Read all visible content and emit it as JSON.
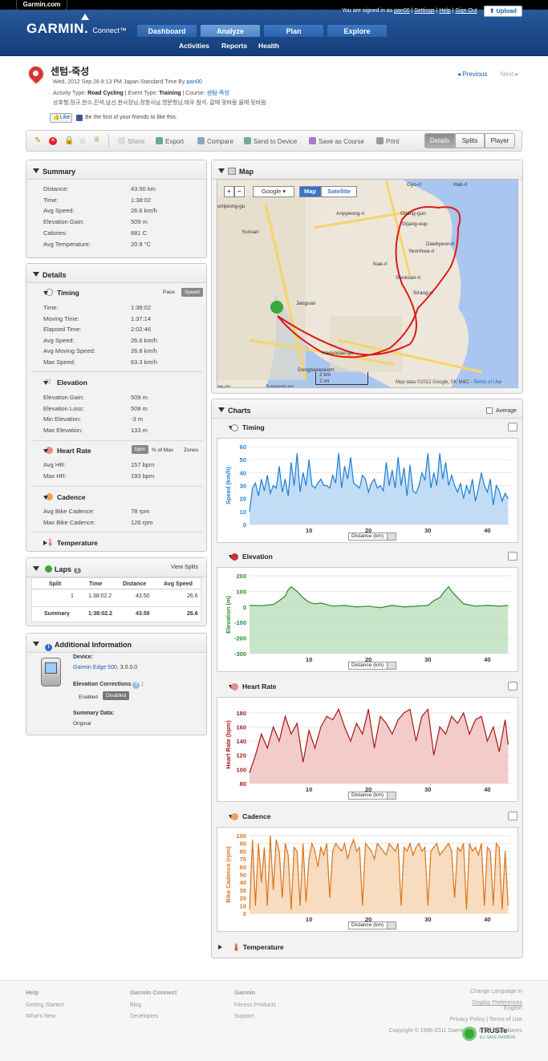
{
  "site_tab": "Garmin.com",
  "logo": {
    "main": "GARMIN.",
    "sub": "Connect™"
  },
  "userbar": {
    "signed": "You are signed in as",
    "user": "pan00",
    "settings": "Settings",
    "help": "Help",
    "signout": "Sign Out"
  },
  "upload_label": "Upload",
  "nav": {
    "tabs": [
      "Dashboard",
      "Analyze",
      "Plan",
      "Explore"
    ],
    "active": "Analyze",
    "sub": [
      "Activities",
      "Reports",
      "Health"
    ]
  },
  "activity": {
    "title": "센텀-죽성",
    "date_line": "Wed, 2012 Sep 26 8:13 PM Japan Standard Time By",
    "by_user": "pan00",
    "type_prefix": "Activity Type:",
    "type": "Road Cycling",
    "event_prefix": "| Event Type:",
    "event": "Training",
    "course_prefix": "| Course:",
    "course": "센텀-죽성",
    "participants": "상호형,정규,판수,진석,남선,판사장님,정항사님,영문형님,태우 참석. 갈때 맞바람 올때 뒷바람.",
    "like": "Like",
    "like_text": "Be the first of your friends to like this.",
    "previous": "Previous",
    "next": "Next"
  },
  "toolbar": {
    "share": "Share",
    "export": "Export",
    "compare": "Compare",
    "send": "Send to Device",
    "save_course": "Save as Course",
    "print": "Print",
    "views": [
      "Details",
      "Splits",
      "Player"
    ],
    "active_view": "Details"
  },
  "summary": {
    "title": "Summary",
    "rows": [
      {
        "label": "Distance:",
        "value": "43.50 km"
      },
      {
        "label": "Time:",
        "value": "1:38:02"
      },
      {
        "label": "Avg Speed:",
        "value": "26.6 km/h"
      },
      {
        "label": "Elevation Gain:",
        "value": "509 m"
      },
      {
        "label": "Calories:",
        "value": "881 C"
      },
      {
        "label": "Avg Temperature:",
        "value": "20.9 °C"
      }
    ]
  },
  "details": {
    "title": "Details",
    "timing": {
      "title": "Timing",
      "toggle": [
        "Pace",
        "Speed"
      ],
      "rows": [
        {
          "label": "Time:",
          "value": "1:38:02"
        },
        {
          "label": "Moving Time:",
          "value": "1:37:14"
        },
        {
          "label": "Elapsed Time:",
          "value": "2:02:46"
        },
        {
          "label": "Avg Speed:",
          "value": "26.6 km/h"
        },
        {
          "label": "Avg Moving Speed:",
          "value": "26.8 km/h"
        },
        {
          "label": "Max Speed:",
          "value": "63.3 km/h"
        }
      ]
    },
    "elevation": {
      "title": "Elevation",
      "rows": [
        {
          "label": "Elevation Gain:",
          "value": "509 m"
        },
        {
          "label": "Elevation Loss:",
          "value": "508 m"
        },
        {
          "label": "Min Elevation:",
          "value": "-3 m"
        },
        {
          "label": "Max Elevation:",
          "value": "133 m"
        }
      ]
    },
    "heart": {
      "title": "Heart Rate",
      "toggle": [
        "bpm",
        "% of Max",
        "Zones"
      ],
      "rows": [
        {
          "label": "Avg HR:",
          "value": "157 bpm"
        },
        {
          "label": "Max HR:",
          "value": "193 bpm"
        }
      ]
    },
    "cadence": {
      "title": "Cadence",
      "rows": [
        {
          "label": "Avg Bike Cadence:",
          "value": "78 rpm"
        },
        {
          "label": "Max Bike Cadence:",
          "value": "126 rpm"
        }
      ]
    },
    "temperature": {
      "title": "Temperature"
    }
  },
  "laps": {
    "title": "Laps",
    "count": "1",
    "view_splits": "View Splits",
    "headers": [
      "Split",
      "Time",
      "Distance",
      "Avg Speed"
    ],
    "rows": [
      [
        "1",
        "1:38:02.2",
        "43.50",
        "26.6"
      ]
    ],
    "summary": [
      "Summary",
      "1:38:02.2",
      "43.50",
      "26.6"
    ]
  },
  "additional": {
    "title": "Additional Information",
    "device_label": "Device:",
    "device": "Garmin Edge 500",
    "device_ver": ", 3.0.0.0",
    "elev_corr": "Elevation Corrections",
    "enabled": "Enabled",
    "disabled": "Disabled",
    "summary_data": "Summary Data:",
    "summary_val": "Original"
  },
  "map": {
    "title": "Map",
    "provider": "Google",
    "types": [
      "Map",
      "Satellite"
    ],
    "active_type": "Map",
    "places": [
      "Gyo-ri",
      "Hak-ri",
      "umjeong-gu",
      "Anpyeong-ri",
      "Gijang-gun",
      "Gijang-eup",
      "Yunsan",
      "Daebyeon-ri",
      "Yeonhwa-ri",
      "Nae-ri",
      "Seoksan-ri",
      "Sirang-ri",
      "Jangsan",
      "Haeundae-gu",
      "Dongbaekseom",
      "Suyeong-gu",
      "ae-gu"
    ],
    "scale_km": "2 km",
    "scale_mi": "2 mi",
    "attribution": "Map data ©2012 Google, SK M&C -",
    "terms": "Terms of Use"
  },
  "charts": {
    "title": "Charts",
    "average_label": "Average",
    "distance_select": "Distance (km)",
    "temperature_title": "Temperature",
    "colors": {
      "timing": "#1f7fd6",
      "elevation": "#2a8a2a",
      "heart": "#a81818",
      "cadence": "#d9741b"
    }
  },
  "chart_data": [
    {
      "type": "area",
      "title": "Timing",
      "xlabel": "Distance (km)",
      "ylabel": "Speed (km/h)",
      "ylim": [
        0,
        60
      ],
      "yticks": [
        0,
        10,
        20,
        30,
        40,
        50,
        60
      ],
      "xticks": [
        10,
        20,
        30,
        40
      ],
      "xlim": [
        0,
        44
      ],
      "x": [
        0,
        0.5,
        1,
        1.5,
        2,
        2.5,
        3,
        3.5,
        4,
        4.5,
        5,
        5.5,
        6,
        6.5,
        7,
        7.5,
        8,
        8.5,
        9,
        9.5,
        10,
        10.5,
        11,
        11.5,
        12,
        12.5,
        13,
        13.5,
        14,
        14.5,
        15,
        15.5,
        16,
        16.5,
        17,
        17.5,
        18,
        18.5,
        19,
        19.5,
        20,
        20.5,
        21,
        21.5,
        22,
        22.5,
        23,
        23.5,
        24,
        24.5,
        25,
        25.5,
        26,
        26.5,
        27,
        27.5,
        28,
        28.5,
        29,
        29.5,
        30,
        30.5,
        31,
        31.5,
        32,
        32.5,
        33,
        33.5,
        34,
        34.5,
        35,
        35.5,
        36,
        36.5,
        37,
        37.5,
        38,
        38.5,
        39,
        39.5,
        40,
        40.5,
        41,
        41.5,
        42,
        42.5,
        43,
        43.5
      ],
      "y": [
        10,
        28,
        32,
        22,
        35,
        26,
        38,
        24,
        30,
        28,
        45,
        25,
        35,
        22,
        48,
        30,
        55,
        25,
        40,
        30,
        50,
        30,
        28,
        32,
        35,
        30,
        30,
        28,
        38,
        32,
        55,
        28,
        45,
        35,
        52,
        32,
        30,
        28,
        38,
        35,
        25,
        32,
        35,
        28,
        30,
        26,
        48,
        30,
        42,
        28,
        52,
        30,
        44,
        22,
        46,
        26,
        24,
        30,
        40,
        34,
        55,
        28,
        40,
        30,
        55,
        35,
        48,
        30,
        38,
        30,
        25,
        32,
        20,
        30,
        24,
        35,
        18,
        28,
        40,
        30,
        25,
        35,
        15,
        30,
        26,
        18,
        24,
        20
      ]
    },
    {
      "type": "area",
      "title": "Elevation",
      "xlabel": "Distance (km)",
      "ylabel": "Elevation (m)",
      "ylim": [
        -300,
        200
      ],
      "yticks": [
        -300,
        -200,
        -100,
        0,
        100,
        200
      ],
      "xticks": [
        10,
        20,
        30,
        40
      ],
      "xlim": [
        0,
        44
      ],
      "x": [
        0,
        2,
        4,
        5,
        6,
        6.5,
        7,
        8,
        9,
        10,
        11,
        12,
        14,
        16,
        18,
        20,
        22,
        24,
        26,
        28,
        30,
        31,
        32,
        33,
        33.5,
        34,
        35,
        36,
        38,
        40,
        42,
        43.5
      ],
      "y": [
        10,
        8,
        15,
        40,
        70,
        110,
        130,
        100,
        60,
        30,
        20,
        25,
        5,
        10,
        0,
        5,
        -5,
        10,
        0,
        5,
        10,
        40,
        60,
        110,
        130,
        100,
        60,
        20,
        5,
        10,
        5,
        10
      ]
    },
    {
      "type": "area",
      "title": "Heart Rate",
      "xlabel": "Distance (km)",
      "ylabel": "Heart Rate (bpm)",
      "ylim": [
        80,
        190
      ],
      "yticks": [
        80,
        100,
        120,
        140,
        160,
        180
      ],
      "xticks": [
        10,
        20,
        30,
        40
      ],
      "xlim": [
        0,
        44
      ],
      "x": [
        0,
        1,
        2,
        3,
        4,
        5,
        6,
        7,
        8,
        9,
        10,
        11,
        12,
        13,
        14,
        15,
        16,
        17,
        18,
        19,
        20,
        21,
        22,
        23,
        24,
        25,
        26,
        27,
        28,
        29,
        30,
        31,
        32,
        33,
        34,
        35,
        36,
        37,
        38,
        39,
        40,
        41,
        42,
        43,
        43.5
      ],
      "y": [
        95,
        120,
        150,
        130,
        160,
        140,
        175,
        150,
        165,
        110,
        155,
        130,
        160,
        175,
        170,
        185,
        160,
        140,
        165,
        150,
        185,
        130,
        175,
        165,
        150,
        170,
        180,
        185,
        140,
        175,
        185,
        120,
        160,
        150,
        175,
        165,
        180,
        150,
        170,
        175,
        140,
        160,
        125,
        170,
        135
      ]
    },
    {
      "type": "area",
      "title": "Cadence",
      "xlabel": "Distance (km)",
      "ylabel": "Bike Cadence (rpm)",
      "ylim": [
        0,
        100
      ],
      "yticks": [
        0,
        10,
        20,
        30,
        40,
        50,
        60,
        70,
        80,
        90,
        100
      ],
      "xticks": [
        10,
        20,
        30,
        40
      ],
      "xlim": [
        0,
        44
      ],
      "x": [
        0,
        0.5,
        1,
        1.5,
        2,
        2.5,
        3,
        3.5,
        4,
        4.5,
        5,
        5.5,
        6,
        6.5,
        7,
        7.5,
        8,
        8.5,
        9,
        9.5,
        10,
        10.5,
        11,
        11.5,
        12,
        12.5,
        13,
        13.5,
        14,
        14.5,
        15,
        15.5,
        16,
        16.5,
        17,
        17.5,
        18,
        18.5,
        19,
        19.5,
        20,
        20.5,
        21,
        21.5,
        22,
        22.5,
        23,
        23.5,
        24,
        24.5,
        25,
        25.5,
        26,
        26.5,
        27,
        27.5,
        28,
        28.5,
        29,
        29.5,
        30,
        30.5,
        31,
        31.5,
        32,
        32.5,
        33,
        33.5,
        34,
        34.5,
        35,
        35.5,
        36,
        36.5,
        37,
        37.5,
        38,
        38.5,
        39,
        39.5,
        40,
        40.5,
        41,
        41.5,
        42,
        42.5,
        43,
        43.5
      ],
      "y": [
        5,
        95,
        10,
        90,
        40,
        85,
        10,
        100,
        30,
        95,
        80,
        20,
        90,
        75,
        5,
        85,
        80,
        10,
        90,
        15,
        70,
        90,
        80,
        60,
        85,
        75,
        90,
        20,
        80,
        90,
        85,
        80,
        90,
        70,
        85,
        95,
        80,
        85,
        10,
        90,
        85,
        80,
        70,
        90,
        85,
        80,
        75,
        90,
        85,
        80,
        90,
        10,
        85,
        80,
        90,
        75,
        85,
        90,
        80,
        85,
        10,
        80,
        85,
        90,
        75,
        80,
        85,
        90,
        80,
        20,
        85,
        80,
        90,
        5,
        90,
        80,
        85,
        75,
        90,
        10,
        85,
        80,
        10,
        90,
        85,
        5,
        80,
        10
      ]
    }
  ],
  "footer": {
    "help": {
      "title": "Help",
      "links": [
        "Getting Started",
        "What's New"
      ]
    },
    "connect": {
      "title": "Garmin Connect",
      "links": [
        "Blog",
        "Developers"
      ]
    },
    "garmin": {
      "title": "Garmin",
      "links": [
        "Fitness Products",
        "Support"
      ]
    },
    "lang": "Change Language in",
    "lang_link": "Display Preferences",
    "lang_val": ": English",
    "privacy": "Privacy Policy | Terms of Use",
    "copyright": "Copyright © 1996-2011 Garmin Ltd. or its subsidiaries",
    "truste": "TRUSTe",
    "truste_sub": "EU SAFE HARBOR"
  }
}
